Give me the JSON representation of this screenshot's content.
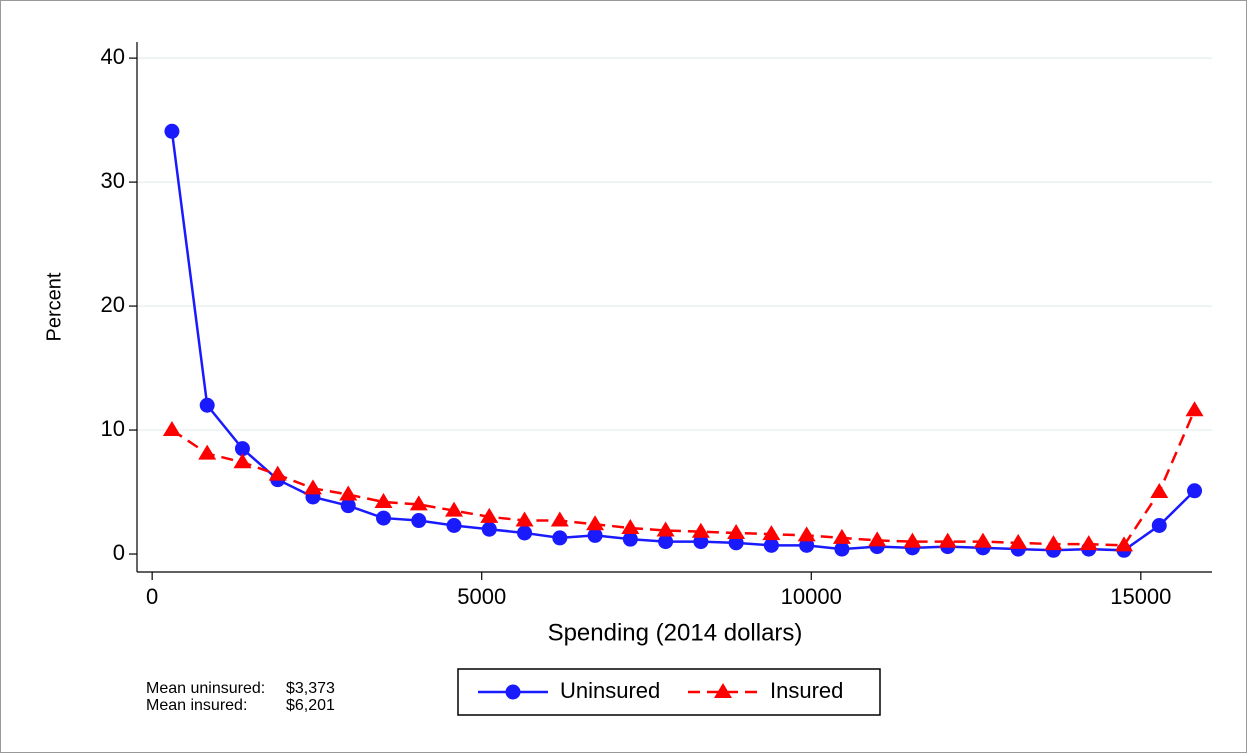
{
  "chart_data": {
    "type": "line",
    "xlabel": "Spending (2014 dollars)",
    "ylabel": "Percent",
    "x": [
      300,
      835,
      1370,
      1905,
      2440,
      2975,
      3510,
      4045,
      4580,
      5115,
      5650,
      6185,
      6720,
      7255,
      7790,
      8325,
      8860,
      9395,
      9930,
      10465,
      11000,
      11535,
      12070,
      12605,
      13140,
      13675,
      14210,
      14745,
      15280,
      15815
    ],
    "series": [
      {
        "name": "Uninsured",
        "color": "#1a1aff",
        "marker": "circle",
        "dash": "solid",
        "values": [
          34.1,
          12,
          8.5,
          6,
          4.6,
          3.9,
          2.9,
          2.7,
          2.3,
          2.0,
          1.7,
          1.3,
          1.5,
          1.2,
          1.0,
          1.0,
          0.9,
          0.7,
          0.7,
          0.4,
          0.6,
          0.5,
          0.6,
          0.5,
          0.4,
          0.3,
          0.4,
          0.3,
          2.3,
          5.1
        ]
      },
      {
        "name": "Insured",
        "color": "#ff0000",
        "marker": "triangle",
        "dash": "dashed",
        "values": [
          10.0,
          8.1,
          7.4,
          6.4,
          5.3,
          4.8,
          4.2,
          4.0,
          3.5,
          3.0,
          2.7,
          2.7,
          2.4,
          2.1,
          1.9,
          1.8,
          1.7,
          1.6,
          1.5,
          1.3,
          1.1,
          1.0,
          1.0,
          1.0,
          0.9,
          0.8,
          0.8,
          0.7,
          5.0,
          11.6
        ]
      }
    ],
    "xlim": [
      -230,
      16080
    ],
    "xticks": [
      0,
      5000,
      10000,
      15000
    ],
    "ylim": [
      -1.45,
      41.3
    ],
    "yticks": [
      0,
      10,
      20,
      30,
      40
    ],
    "grid": true,
    "legend": "bottom",
    "notes": [
      {
        "label": "Mean uninsured:",
        "value": "$3,373"
      },
      {
        "label": "Mean insured:",
        "value": "$6,201"
      }
    ]
  }
}
